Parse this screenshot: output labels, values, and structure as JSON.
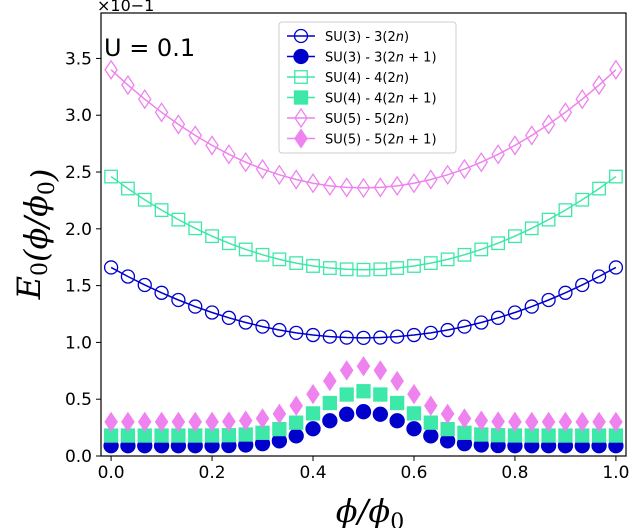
{
  "chart_data": {
    "type": "line",
    "title": "",
    "xlabel": "ϕ/ϕ0",
    "ylabel": "E0(ϕ/ϕ0)",
    "xlim": [
      -0.02,
      1.02
    ],
    "ylim": [
      0,
      0.39
    ],
    "grid": false,
    "legend_position": "top-center",
    "annotation": "U = 0.1",
    "y_scale_label": "×10−1",
    "x_ticks": [
      0.0,
      0.2,
      0.4,
      0.6,
      0.8,
      1.0
    ],
    "x_tick_labels": [
      "0.0",
      "0.2",
      "0.4",
      "0.6",
      "0.8",
      "1.0"
    ],
    "y_ticks": [
      0.0,
      0.05,
      0.1,
      0.15,
      0.2,
      0.25,
      0.3,
      0.35
    ],
    "y_tick_labels": [
      "0.0",
      "0.5",
      "1.0",
      "1.5",
      "2.0",
      "2.5",
      "3.0",
      "3.5"
    ],
    "x_samples": {
      "start": 0.0,
      "end": 1.0,
      "count": 31
    },
    "series": [
      {
        "name": "SU(3) - 3(2n)",
        "label_prefix": "SU(3) - 3(2",
        "label_var": "n",
        "label_suffix": ")",
        "color": "#0000cc",
        "marker": "circle",
        "filled": false,
        "line": true,
        "min": 0.104,
        "max": 0.166,
        "shape": "parabola"
      },
      {
        "name": "SU(3) - 3(2n + 1)",
        "label_prefix": "SU(3) - 3(2",
        "label_var": "n",
        "label_suffix": " + 1)",
        "color": "#0000cc",
        "marker": "circle",
        "filled": true,
        "line": false,
        "min": 0.009,
        "max": 0.039,
        "shape": "bump"
      },
      {
        "name": "SU(4) - 4(2n)",
        "label_prefix": "SU(4) - 4(2",
        "label_var": "n",
        "label_suffix": ")",
        "color": "#3de8a8",
        "marker": "square",
        "filled": false,
        "line": true,
        "min": 0.164,
        "max": 0.246,
        "shape": "parabola"
      },
      {
        "name": "SU(4) - 4(2n + 1)",
        "label_prefix": "SU(4) - 4(2",
        "label_var": "n",
        "label_suffix": " + 1)",
        "color": "#3de8a8",
        "marker": "square",
        "filled": true,
        "line": false,
        "min": 0.018,
        "max": 0.057,
        "shape": "bump"
      },
      {
        "name": "SU(5) - 5(2n)",
        "label_prefix": "SU(5) - 5(2",
        "label_var": "n",
        "label_suffix": ")",
        "color": "#ee82ee",
        "marker": "thin_diamond",
        "filled": false,
        "line": true,
        "min": 0.236,
        "max": 0.34,
        "shape": "parabola"
      },
      {
        "name": "SU(5) - 5(2n + 1)",
        "label_prefix": "SU(5) - 5(2",
        "label_var": "n",
        "label_suffix": " + 1)",
        "color": "#ee82ee",
        "marker": "thin_diamond",
        "filled": true,
        "line": false,
        "min": 0.03,
        "max": 0.079,
        "shape": "bump"
      }
    ]
  }
}
